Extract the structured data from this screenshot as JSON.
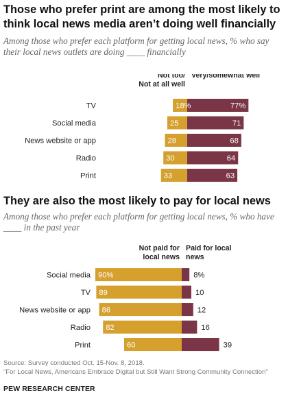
{
  "chart_data": [
    {
      "type": "bar",
      "stacked": true,
      "orientation": "horizontal",
      "title": "Those who prefer print are among the most likely to think local news media aren’t doing well financially",
      "subtitle": "Among those who prefer each platform for getting local news, % who say their local news outlets are doing ____ financially",
      "categories": [
        "TV",
        "Social media",
        "News website or app",
        "Radio",
        "Print"
      ],
      "value_suffix_first_row": "%",
      "series": [
        {
          "name": "Not too/ Not at all well",
          "values": [
            18,
            25,
            28,
            30,
            33
          ],
          "color": "#D5A02E"
        },
        {
          "name": "Very/somewhat well",
          "values": [
            77,
            71,
            68,
            64,
            63
          ],
          "color": "#7A3646"
        }
      ],
      "series_header_lines": [
        [
          "Not too/",
          "Not at all well"
        ],
        [
          "Very/somewhat well"
        ]
      ],
      "grid": false
    },
    {
      "type": "bar",
      "stacked": true,
      "orientation": "horizontal",
      "title": "They are also the most likely to pay for local news",
      "subtitle": "Among those who prefer each platform for getting local news, % who have ____ in the past year",
      "categories": [
        "Social media",
        "TV",
        "News website or app",
        "Radio",
        "Print"
      ],
      "value_suffix_first_row": "%",
      "series": [
        {
          "name": "Not paid for local news",
          "values": [
            90,
            89,
            86,
            82,
            60
          ],
          "color": "#D5A02E"
        },
        {
          "name": "Paid for local news",
          "values": [
            8,
            10,
            12,
            16,
            39
          ],
          "color": "#7A3646"
        }
      ],
      "series_header_lines": [
        [
          "Not paid for",
          "local news"
        ],
        [
          "Paid for local",
          "news"
        ]
      ],
      "grid": false
    }
  ],
  "footer": {
    "source": "Source: Survey conducted Oct. 15-Nov. 8, 2018.",
    "report": "“For Local News, Americans Embrace Digital but Still Want Strong Community Connection”",
    "brand": "PEW RESEARCH CENTER"
  }
}
